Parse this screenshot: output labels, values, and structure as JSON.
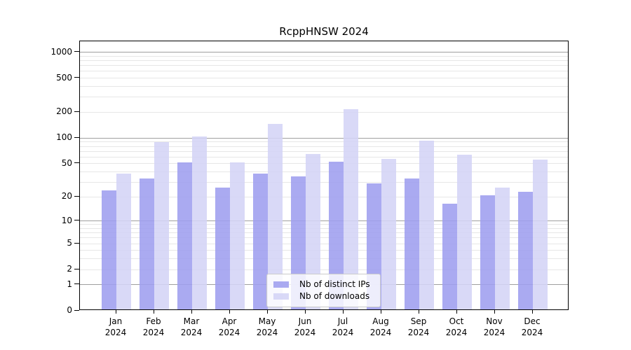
{
  "title": "RcppHNSW 2024",
  "chart_data": {
    "type": "bar",
    "title": "RcppHNSW 2024",
    "categories": [
      "Jan",
      "Feb",
      "Mar",
      "Apr",
      "May",
      "Jun",
      "Jul",
      "Aug",
      "Sep",
      "Oct",
      "Nov",
      "Dec"
    ],
    "year_label": "2024",
    "series": [
      {
        "name": "Nb of distinct IPs",
        "color": "#9d9def",
        "values": [
          23,
          32,
          50,
          25,
          37,
          34,
          51,
          28,
          32,
          16,
          20,
          22
        ]
      },
      {
        "name": "Nb of downloads",
        "color": "#d3d3f6",
        "values": [
          37,
          86,
          100,
          50,
          140,
          63,
          210,
          55,
          89,
          61,
          25,
          54
        ]
      }
    ],
    "yscale": "log1p",
    "ylim": [
      0,
      1340
    ],
    "y_ticks": [
      0,
      1,
      2,
      5,
      10,
      20,
      50,
      100,
      200,
      500,
      1000
    ],
    "grid": true,
    "legend_position": "inside-bottom-center"
  },
  "legend": {
    "items": [
      "Nb of distinct IPs",
      "Nb of downloads"
    ]
  },
  "colors": {
    "bar_distinct_ips": "#9d9def",
    "bar_downloads": "#d3d3f6",
    "grid_major": "#9f9f9f",
    "grid_minor": "#e7e7e7",
    "axis": "#000000",
    "background": "#ffffff"
  }
}
